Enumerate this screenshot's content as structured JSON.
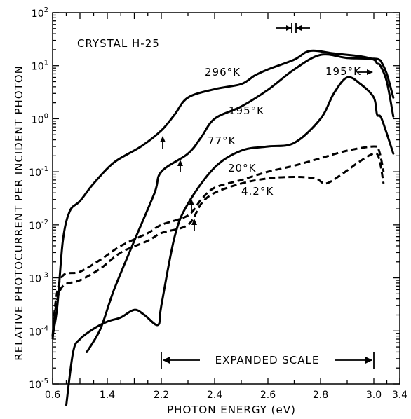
{
  "chart_data": {
    "type": "line",
    "title": "CRYSTAL H-25",
    "xlabel": "PHOTON ENERGY (eV)",
    "ylabel": "RELATIVE PHOTOCURRENT PER INCIDENT PHOTON",
    "y_scale": "log",
    "ylim": [
      1e-05,
      100
    ],
    "grid": false,
    "x_tick_labels": [
      "0.6",
      "1.4",
      "2.2",
      "2.4",
      "2.6",
      "2.8",
      "3.0",
      "3.4"
    ],
    "y_tick_labels": [
      {
        "base": "10",
        "exp": "-5"
      },
      {
        "base": "10",
        "exp": "-4"
      },
      {
        "base": "10",
        "exp": "-3"
      },
      {
        "base": "10",
        "exp": "-2"
      },
      {
        "base": "10",
        "exp": "-1"
      },
      {
        "base": "10",
        "exp": "0"
      },
      {
        "base": "10",
        "exp": "1"
      },
      {
        "base": "10",
        "exp": "2"
      }
    ],
    "expanded_scale_label": "EXPANDED SCALE",
    "expanded_scale_range_ev": [
      2.2,
      3.0
    ],
    "series": [
      {
        "name": "296°K",
        "style": "solid",
        "points": [
          [
            0.6,
            8e-05
          ],
          [
            0.67,
            0.0003
          ],
          [
            0.75,
            0.005
          ],
          [
            0.85,
            0.018
          ],
          [
            1.0,
            0.028
          ],
          [
            1.2,
            0.06
          ],
          [
            1.5,
            0.15
          ],
          [
            1.9,
            0.3
          ],
          [
            2.2,
            0.6
          ],
          [
            2.25,
            1.2
          ],
          [
            2.3,
            2.5
          ],
          [
            2.4,
            3.6
          ],
          [
            2.5,
            4.5
          ],
          [
            2.55,
            6.5
          ],
          [
            2.6,
            8.5
          ],
          [
            2.7,
            13
          ],
          [
            2.76,
            19
          ],
          [
            2.85,
            17
          ],
          [
            2.95,
            15
          ],
          [
            3.0,
            13
          ],
          [
            3.05,
            11
          ],
          [
            3.1,
            10
          ],
          [
            3.2,
            5
          ],
          [
            3.3,
            1.1
          ]
        ]
      },
      {
        "name": "195°K",
        "style": "solid",
        "points": [
          [
            1.1,
            4e-05
          ],
          [
            1.3,
            0.00011
          ],
          [
            1.5,
            0.0006
          ],
          [
            1.8,
            0.005
          ],
          [
            2.1,
            0.04
          ],
          [
            2.2,
            0.1
          ],
          [
            2.3,
            0.22
          ],
          [
            2.35,
            0.45
          ],
          [
            2.4,
            1.0
          ],
          [
            2.5,
            1.7
          ],
          [
            2.6,
            3.5
          ],
          [
            2.7,
            8.5
          ],
          [
            2.8,
            16
          ],
          [
            2.9,
            14
          ],
          [
            3.0,
            13.5
          ],
          [
            3.08,
            13
          ],
          [
            3.12,
            11.5
          ],
          [
            3.2,
            7
          ],
          [
            3.3,
            2.5
          ]
        ]
      },
      {
        "name": "77°K",
        "style": "solid",
        "points": [
          [
            0.8,
            4e-06
          ],
          [
            0.9,
            4e-05
          ],
          [
            1.0,
            7e-05
          ],
          [
            1.2,
            0.00011
          ],
          [
            1.4,
            0.00015
          ],
          [
            1.6,
            0.00018
          ],
          [
            1.8,
            0.00025
          ],
          [
            1.95,
            0.0002
          ],
          [
            2.15,
            0.00013
          ],
          [
            2.2,
            0.0003
          ],
          [
            2.25,
            0.006
          ],
          [
            2.3,
            0.025
          ],
          [
            2.4,
            0.12
          ],
          [
            2.5,
            0.25
          ],
          [
            2.6,
            0.3
          ],
          [
            2.7,
            0.35
          ],
          [
            2.8,
            1.0
          ],
          [
            2.85,
            3.0
          ],
          [
            2.9,
            6.0
          ],
          [
            2.95,
            4.5
          ],
          [
            3.0,
            2.5
          ],
          [
            3.05,
            1.2
          ],
          [
            3.12,
            1.0
          ],
          [
            3.3,
            0.22
          ]
        ]
      },
      {
        "name": "20°K",
        "style": "dashed",
        "points": [
          [
            0.6,
            8e-05
          ],
          [
            0.65,
            0.0004
          ],
          [
            0.75,
            0.0011
          ],
          [
            1.0,
            0.0013
          ],
          [
            1.3,
            0.0022
          ],
          [
            1.6,
            0.004
          ],
          [
            2.0,
            0.007
          ],
          [
            2.2,
            0.01
          ],
          [
            2.3,
            0.015
          ],
          [
            2.35,
            0.03
          ],
          [
            2.4,
            0.05
          ],
          [
            2.5,
            0.07
          ],
          [
            2.6,
            0.1
          ],
          [
            2.7,
            0.13
          ],
          [
            2.8,
            0.18
          ],
          [
            2.9,
            0.25
          ],
          [
            3.0,
            0.3
          ],
          [
            3.08,
            0.25
          ],
          [
            3.15,
            0.1
          ]
        ]
      },
      {
        "name": "4.2°K",
        "style": "dashed",
        "points": [
          [
            0.6,
            7e-05
          ],
          [
            0.65,
            0.0003
          ],
          [
            0.75,
            0.0007
          ],
          [
            1.0,
            0.0009
          ],
          [
            1.3,
            0.0015
          ],
          [
            1.6,
            0.003
          ],
          [
            2.0,
            0.005
          ],
          [
            2.2,
            0.007
          ],
          [
            2.3,
            0.01
          ],
          [
            2.35,
            0.025
          ],
          [
            2.4,
            0.04
          ],
          [
            2.5,
            0.06
          ],
          [
            2.6,
            0.075
          ],
          [
            2.7,
            0.08
          ],
          [
            2.78,
            0.075
          ],
          [
            2.82,
            0.06
          ],
          [
            2.88,
            0.09
          ],
          [
            2.95,
            0.16
          ],
          [
            3.0,
            0.22
          ],
          [
            3.08,
            0.18
          ],
          [
            3.15,
            0.06
          ]
        ]
      }
    ]
  }
}
